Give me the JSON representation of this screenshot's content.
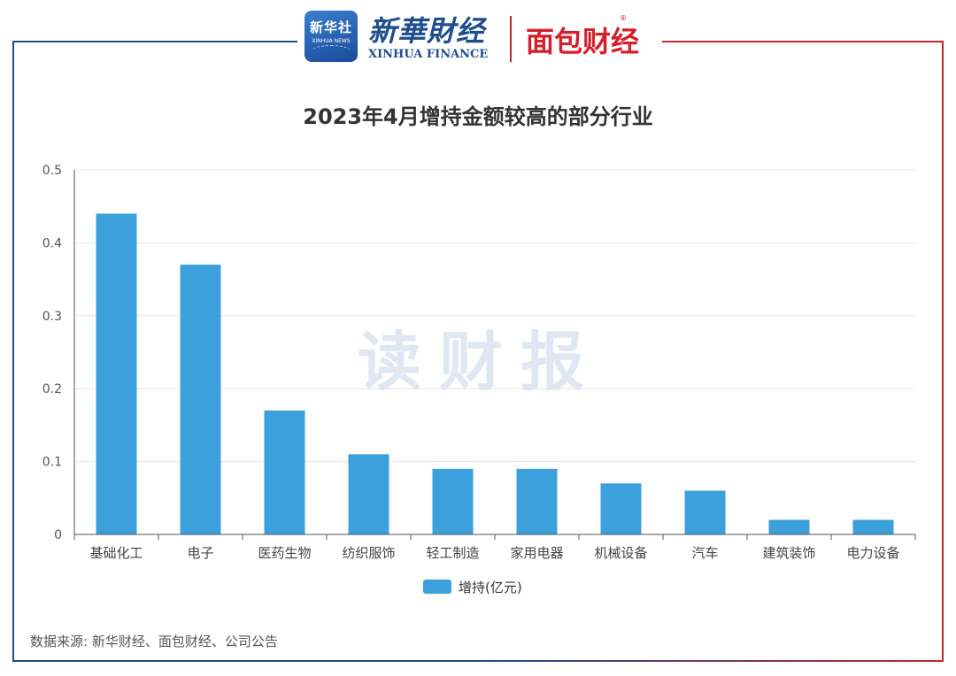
{
  "header": {
    "xinhua_badge_line1": "新华社",
    "xinhua_badge_line2": "XINHUA NEWS",
    "xinhua_name": "新華財经",
    "xinhua_sub": "XINHUA FINANCE",
    "mianbao_name": "面包财经",
    "mianbao_reg": "®"
  },
  "watermark": "读财报",
  "source": "数据来源: 新华财经、面包财经、公司公告",
  "colors": {
    "bar": "#3ca0dc",
    "frame_left": "#1f4e8c",
    "frame_right": "#c0282f"
  },
  "chart_data": {
    "type": "bar",
    "title": "2023年4月增持金额较高的部分行业",
    "categories": [
      "基础化工",
      "电子",
      "医药生物",
      "纺织服饰",
      "轻工制造",
      "家用电器",
      "机械设备",
      "汽车",
      "建筑装饰",
      "电力设备"
    ],
    "series": [
      {
        "name": "增持(亿元)",
        "values": [
          0.44,
          0.37,
          0.17,
          0.11,
          0.09,
          0.09,
          0.07,
          0.06,
          0.02,
          0.02
        ]
      }
    ],
    "ylim": [
      0,
      0.5
    ],
    "yticks": [
      0,
      0.1,
      0.2,
      0.3,
      0.4,
      0.5
    ],
    "ytick_labels": [
      "0",
      "0.1",
      "0.2",
      "0.3",
      "0.4",
      "0.5"
    ],
    "grid": true,
    "legend_position": "bottom-center"
  }
}
